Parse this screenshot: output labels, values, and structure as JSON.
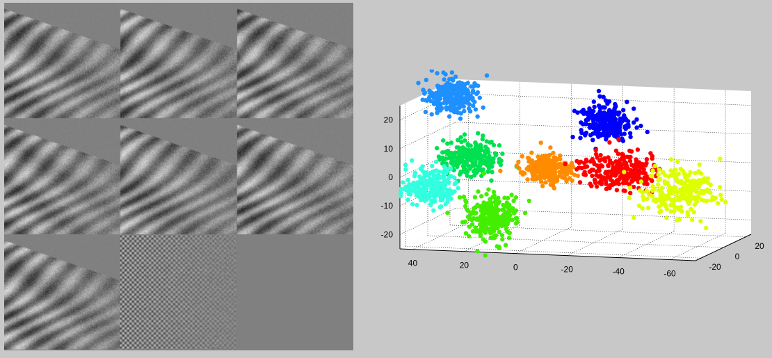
{
  "mosaic": {
    "grid": [
      3,
      3
    ],
    "panels": [
      {
        "kind": "seismic-filter",
        "seed": 11
      },
      {
        "kind": "seismic-filter",
        "seed": 23
      },
      {
        "kind": "seismic-filter",
        "seed": 37
      },
      {
        "kind": "seismic-filter",
        "seed": 41
      },
      {
        "kind": "seismic-filter",
        "seed": 53
      },
      {
        "kind": "seismic-filter",
        "seed": 67
      },
      {
        "kind": "seismic-filter",
        "seed": 71
      },
      {
        "kind": "noise-filter",
        "seed": 89
      },
      {
        "kind": "blank"
      }
    ],
    "background": "#808080"
  },
  "chart_data": {
    "type": "scatter",
    "dimensions": 3,
    "xlim": [
      -70,
      45
    ],
    "ylim": [
      -25,
      25
    ],
    "zlim": [
      -25,
      25
    ],
    "x_ticks": [
      40,
      20,
      0,
      -20,
      -40,
      -60
    ],
    "y_ticks": [
      20,
      0,
      -20
    ],
    "z_ticks": [
      20,
      10,
      0,
      -10,
      -20
    ],
    "grid": true,
    "series": [
      {
        "color": "#1e90ff",
        "center": [
          35,
          0,
          24
        ],
        "spread": [
          5,
          2,
          3
        ]
      },
      {
        "color": "#0000ff",
        "center": [
          -25,
          0,
          17
        ],
        "spread": [
          5,
          2,
          3
        ]
      },
      {
        "color": "#00e050",
        "center": [
          28,
          0,
          3
        ],
        "spread": [
          5,
          2,
          3
        ]
      },
      {
        "color": "#ff8c00",
        "center": [
          -2,
          0,
          0
        ],
        "spread": [
          5,
          2,
          2.5
        ]
      },
      {
        "color": "#ff0000",
        "center": [
          -30,
          0,
          0
        ],
        "spread": [
          8,
          2,
          3
        ]
      },
      {
        "color": "#33ffe0",
        "center": [
          44,
          0,
          -8
        ],
        "spread": [
          5,
          2,
          3
        ]
      },
      {
        "color": "#44ee00",
        "center": [
          20,
          0,
          -18
        ],
        "spread": [
          5,
          2,
          4
        ]
      },
      {
        "color": "#ddff00",
        "center": [
          -53,
          0,
          -6
        ],
        "spread": [
          7,
          2,
          4
        ]
      }
    ]
  }
}
